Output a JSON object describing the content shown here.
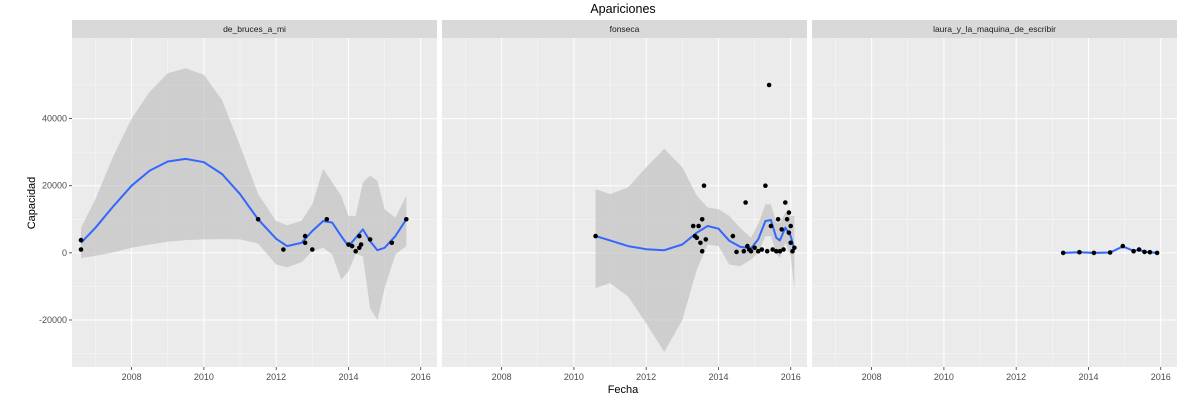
{
  "chart_data": {
    "type": "scatter",
    "title": "Apariciones",
    "xlabel": "Fecha",
    "ylabel": "Capacidad",
    "xlim": [
      2006.35,
      2016.45
    ],
    "ylim": [
      -34000,
      64000
    ],
    "x_ticks": [
      2008,
      2010,
      2012,
      2014,
      2016
    ],
    "x_tick_labels": [
      "2008",
      "2010",
      "2012",
      "2014",
      "2016"
    ],
    "y_ticks": [
      -20000,
      0,
      20000,
      40000
    ],
    "y_tick_labels": [
      "-20000",
      "0",
      "20000",
      "40000"
    ],
    "grid": true,
    "colors": {
      "panel_background": "#ebebeb",
      "grid_major": "#ffffff",
      "strip_background": "#d9d9d9",
      "smooth_line": "#3366ff",
      "ribbon": "#bebebe",
      "points": "#000000"
    },
    "facets": [
      {
        "label": "de_bruces_a_mi",
        "points": [
          {
            "x": 2006.6,
            "y": 3800
          },
          {
            "x": 2006.6,
            "y": 1000
          },
          {
            "x": 2011.5,
            "y": 10000
          },
          {
            "x": 2012.2,
            "y": 1000
          },
          {
            "x": 2012.8,
            "y": 5000
          },
          {
            "x": 2012.8,
            "y": 3000
          },
          {
            "x": 2013.0,
            "y": 1000
          },
          {
            "x": 2013.4,
            "y": 10000
          },
          {
            "x": 2014.0,
            "y": 2500
          },
          {
            "x": 2014.1,
            "y": 2000
          },
          {
            "x": 2014.2,
            "y": 500
          },
          {
            "x": 2014.3,
            "y": 1500
          },
          {
            "x": 2014.3,
            "y": 5000
          },
          {
            "x": 2014.35,
            "y": 2500
          },
          {
            "x": 2014.6,
            "y": 4000
          },
          {
            "x": 2015.2,
            "y": 3000
          },
          {
            "x": 2015.6,
            "y": 10000
          }
        ],
        "smooth": [
          {
            "x": 2006.6,
            "y": 3000
          },
          {
            "x": 2007.0,
            "y": 7500
          },
          {
            "x": 2007.5,
            "y": 14000
          },
          {
            "x": 2008.0,
            "y": 20000
          },
          {
            "x": 2008.5,
            "y": 24500
          },
          {
            "x": 2009.0,
            "y": 27200
          },
          {
            "x": 2009.5,
            "y": 28000
          },
          {
            "x": 2010.0,
            "y": 27000
          },
          {
            "x": 2010.5,
            "y": 23500
          },
          {
            "x": 2011.0,
            "y": 17500
          },
          {
            "x": 2011.5,
            "y": 10000
          },
          {
            "x": 2012.0,
            "y": 4200
          },
          {
            "x": 2012.3,
            "y": 2000
          },
          {
            "x": 2012.7,
            "y": 3000
          },
          {
            "x": 2013.0,
            "y": 6500
          },
          {
            "x": 2013.3,
            "y": 9500
          },
          {
            "x": 2013.55,
            "y": 9000
          },
          {
            "x": 2013.8,
            "y": 5000
          },
          {
            "x": 2014.0,
            "y": 2000
          },
          {
            "x": 2014.2,
            "y": 4500
          },
          {
            "x": 2014.4,
            "y": 7000
          },
          {
            "x": 2014.6,
            "y": 3500
          },
          {
            "x": 2014.8,
            "y": 800
          },
          {
            "x": 2015.0,
            "y": 1500
          },
          {
            "x": 2015.3,
            "y": 5000
          },
          {
            "x": 2015.6,
            "y": 10000
          }
        ],
        "ribbon": [
          {
            "x": 2006.6,
            "lo": -1500,
            "hi": 7500
          },
          {
            "x": 2007.0,
            "lo": -900,
            "hi": 16000
          },
          {
            "x": 2007.5,
            "lo": 200,
            "hi": 29000
          },
          {
            "x": 2008.0,
            "lo": 1500,
            "hi": 40000
          },
          {
            "x": 2008.5,
            "lo": 2500,
            "hi": 48000
          },
          {
            "x": 2009.0,
            "lo": 3300,
            "hi": 53500
          },
          {
            "x": 2009.5,
            "lo": 3800,
            "hi": 55000
          },
          {
            "x": 2010.0,
            "lo": 4000,
            "hi": 53000
          },
          {
            "x": 2010.5,
            "lo": 4100,
            "hi": 45500
          },
          {
            "x": 2011.0,
            "lo": 4000,
            "hi": 32000
          },
          {
            "x": 2011.5,
            "lo": 2800,
            "hi": 17500
          },
          {
            "x": 2012.0,
            "lo": -3500,
            "hi": 9500
          },
          {
            "x": 2012.3,
            "lo": -4300,
            "hi": 8200
          },
          {
            "x": 2012.7,
            "lo": -2800,
            "hi": 9500
          },
          {
            "x": 2013.0,
            "lo": 500,
            "hi": 14500
          },
          {
            "x": 2013.3,
            "lo": 1500,
            "hi": 25000
          },
          {
            "x": 2013.55,
            "lo": -500,
            "hi": 21000
          },
          {
            "x": 2013.8,
            "lo": -8000,
            "hi": 17000
          },
          {
            "x": 2014.0,
            "lo": -5500,
            "hi": 11000
          },
          {
            "x": 2014.2,
            "lo": -300,
            "hi": 11000
          },
          {
            "x": 2014.4,
            "lo": -1000,
            "hi": 21000
          },
          {
            "x": 2014.6,
            "lo": -16500,
            "hi": 23000
          },
          {
            "x": 2014.8,
            "lo": -20000,
            "hi": 21500
          },
          {
            "x": 2015.0,
            "lo": -10500,
            "hi": 13000
          },
          {
            "x": 2015.3,
            "lo": -500,
            "hi": 10500
          },
          {
            "x": 2015.6,
            "lo": 2000,
            "hi": 17000
          }
        ]
      },
      {
        "label": "fonseca",
        "points": [
          {
            "x": 2010.6,
            "y": 5000
          },
          {
            "x": 2013.3,
            "y": 8000
          },
          {
            "x": 2013.35,
            "y": 5000
          },
          {
            "x": 2013.4,
            "y": 4500
          },
          {
            "x": 2013.45,
            "y": 8000
          },
          {
            "x": 2013.5,
            "y": 3000
          },
          {
            "x": 2013.55,
            "y": 10000
          },
          {
            "x": 2013.6,
            "y": 20000
          },
          {
            "x": 2013.65,
            "y": 4000
          },
          {
            "x": 2013.55,
            "y": 500
          },
          {
            "x": 2014.4,
            "y": 5000
          },
          {
            "x": 2014.5,
            "y": 300
          },
          {
            "x": 2014.7,
            "y": 500
          },
          {
            "x": 2014.75,
            "y": 15000
          },
          {
            "x": 2014.8,
            "y": 2000
          },
          {
            "x": 2014.85,
            "y": 1000
          },
          {
            "x": 2014.9,
            "y": 500
          },
          {
            "x": 2015.0,
            "y": 1500
          },
          {
            "x": 2015.1,
            "y": 500
          },
          {
            "x": 2015.2,
            "y": 1000
          },
          {
            "x": 2015.3,
            "y": 20000
          },
          {
            "x": 2015.35,
            "y": 500
          },
          {
            "x": 2015.4,
            "y": 50000
          },
          {
            "x": 2015.45,
            "y": 8000
          },
          {
            "x": 2015.5,
            "y": 1000
          },
          {
            "x": 2015.6,
            "y": 500
          },
          {
            "x": 2015.65,
            "y": 10000
          },
          {
            "x": 2015.7,
            "y": 500
          },
          {
            "x": 2015.75,
            "y": 7000
          },
          {
            "x": 2015.8,
            "y": 1000
          },
          {
            "x": 2015.85,
            "y": 15000
          },
          {
            "x": 2015.9,
            "y": 10000
          },
          {
            "x": 2015.95,
            "y": 12000
          },
          {
            "x": 2015.95,
            "y": 6000
          },
          {
            "x": 2016.0,
            "y": 8000
          },
          {
            "x": 2016.0,
            "y": 3000
          },
          {
            "x": 2016.05,
            "y": 500
          },
          {
            "x": 2016.1,
            "y": 1500
          }
        ],
        "smooth": [
          {
            "x": 2010.6,
            "y": 5000
          },
          {
            "x": 2011.0,
            "y": 3700
          },
          {
            "x": 2011.5,
            "y": 2000
          },
          {
            "x": 2012.0,
            "y": 1100
          },
          {
            "x": 2012.5,
            "y": 800
          },
          {
            "x": 2013.0,
            "y": 2500
          },
          {
            "x": 2013.4,
            "y": 6000
          },
          {
            "x": 2013.7,
            "y": 8000
          },
          {
            "x": 2014.0,
            "y": 7200
          },
          {
            "x": 2014.3,
            "y": 3600
          },
          {
            "x": 2014.6,
            "y": 1800
          },
          {
            "x": 2014.9,
            "y": 1300
          },
          {
            "x": 2015.1,
            "y": 4000
          },
          {
            "x": 2015.3,
            "y": 9500
          },
          {
            "x": 2015.45,
            "y": 9800
          },
          {
            "x": 2015.6,
            "y": 4500
          },
          {
            "x": 2015.7,
            "y": 3700
          },
          {
            "x": 2015.85,
            "y": 7500
          },
          {
            "x": 2016.0,
            "y": 5000
          },
          {
            "x": 2016.1,
            "y": 1000
          }
        ],
        "ribbon": [
          {
            "x": 2010.6,
            "lo": -10500,
            "hi": 19000
          },
          {
            "x": 2011.0,
            "lo": -9000,
            "hi": 17500
          },
          {
            "x": 2011.5,
            "lo": -13000,
            "hi": 19500
          },
          {
            "x": 2012.0,
            "lo": -21000,
            "hi": 25500
          },
          {
            "x": 2012.5,
            "lo": -29500,
            "hi": 31000
          },
          {
            "x": 2013.0,
            "lo": -20000,
            "hi": 25500
          },
          {
            "x": 2013.4,
            "lo": -5000,
            "hi": 17000
          },
          {
            "x": 2013.7,
            "lo": 2500,
            "hi": 13500
          },
          {
            "x": 2014.0,
            "lo": 2000,
            "hi": 13000
          },
          {
            "x": 2014.3,
            "lo": -3500,
            "hi": 11000
          },
          {
            "x": 2014.6,
            "lo": -4000,
            "hi": 7500
          },
          {
            "x": 2014.9,
            "lo": -2000,
            "hi": 4500
          },
          {
            "x": 2015.1,
            "lo": 0,
            "hi": 8500
          },
          {
            "x": 2015.3,
            "lo": 5000,
            "hi": 14500
          },
          {
            "x": 2015.45,
            "lo": 5000,
            "hi": 14500
          },
          {
            "x": 2015.6,
            "lo": -300,
            "hi": 9000
          },
          {
            "x": 2015.7,
            "lo": -1500,
            "hi": 9000
          },
          {
            "x": 2015.85,
            "lo": 3000,
            "hi": 12000
          },
          {
            "x": 2016.0,
            "lo": -1000,
            "hi": 11000
          },
          {
            "x": 2016.1,
            "lo": -11000,
            "hi": 11000
          }
        ]
      },
      {
        "label": "laura_y_la_maquina_de_escribir",
        "points": [
          {
            "x": 2013.3,
            "y": 0
          },
          {
            "x": 2013.75,
            "y": 200
          },
          {
            "x": 2014.15,
            "y": 0
          },
          {
            "x": 2014.6,
            "y": 100
          },
          {
            "x": 2014.95,
            "y": 2000
          },
          {
            "x": 2015.25,
            "y": 500
          },
          {
            "x": 2015.4,
            "y": 1000
          },
          {
            "x": 2015.55,
            "y": 300
          },
          {
            "x": 2015.7,
            "y": 200
          },
          {
            "x": 2015.9,
            "y": 0
          }
        ],
        "smooth": [
          {
            "x": 2013.3,
            "y": 0
          },
          {
            "x": 2013.75,
            "y": 200
          },
          {
            "x": 2014.15,
            "y": 0
          },
          {
            "x": 2014.6,
            "y": 100
          },
          {
            "x": 2014.95,
            "y": 1900
          },
          {
            "x": 2015.25,
            "y": 600
          },
          {
            "x": 2015.4,
            "y": 900
          },
          {
            "x": 2015.55,
            "y": 350
          },
          {
            "x": 2015.7,
            "y": 200
          },
          {
            "x": 2015.9,
            "y": 0
          }
        ],
        "ribbon": [
          {
            "x": 2013.3,
            "lo": -300,
            "hi": 300
          },
          {
            "x": 2013.75,
            "lo": -100,
            "hi": 500
          },
          {
            "x": 2014.15,
            "lo": -300,
            "hi": 300
          },
          {
            "x": 2014.6,
            "lo": -200,
            "hi": 400
          },
          {
            "x": 2014.95,
            "lo": 1500,
            "hi": 2300
          },
          {
            "x": 2015.25,
            "lo": 300,
            "hi": 900
          },
          {
            "x": 2015.4,
            "lo": 600,
            "hi": 1200
          },
          {
            "x": 2015.55,
            "lo": 100,
            "hi": 600
          },
          {
            "x": 2015.7,
            "lo": -100,
            "hi": 500
          },
          {
            "x": 2015.9,
            "lo": -300,
            "hi": 300
          }
        ]
      }
    ]
  }
}
